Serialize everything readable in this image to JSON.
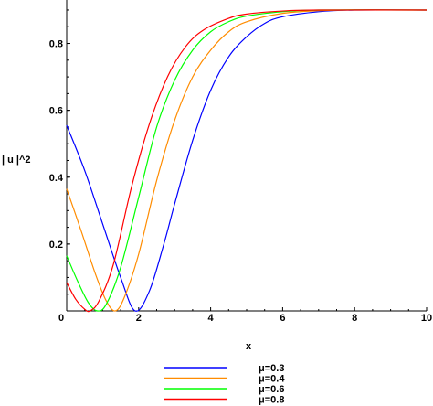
{
  "chart_data": {
    "type": "line",
    "xlabel": "x",
    "ylabel": "| u |^2",
    "xlim": [
      0,
      10
    ],
    "ylim": [
      0,
      0.93
    ],
    "x_ticks": [
      0,
      2,
      4,
      6,
      8,
      10
    ],
    "y_ticks": [
      0.2,
      0.4,
      0.6,
      0.8
    ],
    "x_tick_labels": [
      "0",
      "2",
      "4",
      "6",
      "8",
      "10"
    ],
    "y_tick_labels": [
      "0.2",
      "0.4",
      "0.6",
      "0.8"
    ],
    "grid": false,
    "legend_position": "bottom",
    "series": [
      {
        "name": "μ=0.3",
        "color": "#0000ff",
        "points": [
          [
            0,
            0.555
          ],
          [
            0.5,
            0.42
          ],
          [
            1,
            0.26
          ],
          [
            1.5,
            0.1
          ],
          [
            1.9,
            0.0
          ],
          [
            2.3,
            0.06
          ],
          [
            2.7,
            0.2
          ],
          [
            3,
            0.32
          ],
          [
            3.5,
            0.51
          ],
          [
            4,
            0.66
          ],
          [
            4.5,
            0.76
          ],
          [
            5,
            0.82
          ],
          [
            5.5,
            0.86
          ],
          [
            6,
            0.88
          ],
          [
            7,
            0.895
          ],
          [
            8,
            0.9
          ],
          [
            10,
            0.9
          ]
        ]
      },
      {
        "name": "μ=0.4",
        "color": "#ff8c00",
        "points": [
          [
            0,
            0.365
          ],
          [
            0.4,
            0.24
          ],
          [
            0.8,
            0.11
          ],
          [
            1.1,
            0.03
          ],
          [
            1.35,
            0.0
          ],
          [
            1.6,
            0.04
          ],
          [
            2,
            0.17
          ],
          [
            2.5,
            0.39
          ],
          [
            3,
            0.57
          ],
          [
            3.5,
            0.7
          ],
          [
            4,
            0.78
          ],
          [
            4.5,
            0.835
          ],
          [
            5,
            0.865
          ],
          [
            6,
            0.89
          ],
          [
            7,
            0.898
          ],
          [
            8,
            0.9
          ],
          [
            10,
            0.9
          ]
        ]
      },
      {
        "name": "μ=0.6",
        "color": "#00ff00",
        "points": [
          [
            0,
            0.165
          ],
          [
            0.3,
            0.09
          ],
          [
            0.6,
            0.025
          ],
          [
            0.85,
            0.0
          ],
          [
            1.1,
            0.02
          ],
          [
            1.5,
            0.13
          ],
          [
            2,
            0.34
          ],
          [
            2.5,
            0.55
          ],
          [
            3,
            0.69
          ],
          [
            3.5,
            0.78
          ],
          [
            4,
            0.835
          ],
          [
            4.5,
            0.865
          ],
          [
            5,
            0.882
          ],
          [
            6,
            0.895
          ],
          [
            7,
            0.9
          ],
          [
            10,
            0.9
          ]
        ]
      },
      {
        "name": "μ=0.8",
        "color": "#ff0000",
        "points": [
          [
            0,
            0.085
          ],
          [
            0.25,
            0.035
          ],
          [
            0.5,
            0.005
          ],
          [
            0.65,
            0.0
          ],
          [
            0.9,
            0.03
          ],
          [
            1.3,
            0.14
          ],
          [
            1.8,
            0.37
          ],
          [
            2.3,
            0.56
          ],
          [
            2.8,
            0.7
          ],
          [
            3.3,
            0.79
          ],
          [
            3.8,
            0.84
          ],
          [
            4.5,
            0.875
          ],
          [
            5,
            0.888
          ],
          [
            6,
            0.897
          ],
          [
            7,
            0.9
          ],
          [
            10,
            0.9
          ]
        ]
      }
    ]
  }
}
